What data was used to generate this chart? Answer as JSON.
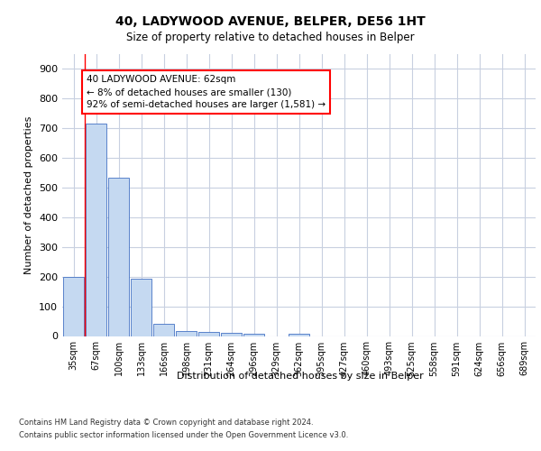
{
  "title_line1": "40, LADYWOOD AVENUE, BELPER, DE56 1HT",
  "title_line2": "Size of property relative to detached houses in Belper",
  "xlabel": "Distribution of detached houses by size in Belper",
  "ylabel": "Number of detached properties",
  "bar_labels": [
    "35sqm",
    "67sqm",
    "100sqm",
    "133sqm",
    "166sqm",
    "198sqm",
    "231sqm",
    "264sqm",
    "296sqm",
    "329sqm",
    "362sqm",
    "395sqm",
    "427sqm",
    "460sqm",
    "493sqm",
    "525sqm",
    "558sqm",
    "591sqm",
    "624sqm",
    "656sqm",
    "689sqm"
  ],
  "bar_values": [
    200,
    715,
    535,
    193,
    40,
    18,
    14,
    10,
    8,
    0,
    8,
    0,
    0,
    0,
    0,
    0,
    0,
    0,
    0,
    0,
    0
  ],
  "bar_color": "#c5d9f1",
  "bar_edge_color": "#4472c4",
  "ylim_max": 950,
  "yticks": [
    0,
    100,
    200,
    300,
    400,
    500,
    600,
    700,
    800,
    900
  ],
  "annotation_text": "40 LADYWOOD AVENUE: 62sqm\n← 8% of detached houses are smaller (130)\n92% of semi-detached houses are larger (1,581) →",
  "footer_line1": "Contains HM Land Registry data © Crown copyright and database right 2024.",
  "footer_line2": "Contains public sector information licensed under the Open Government Licence v3.0.",
  "bg_color": "#ffffff",
  "grid_color": "#c8d0e0",
  "red_line_x": 0.5
}
